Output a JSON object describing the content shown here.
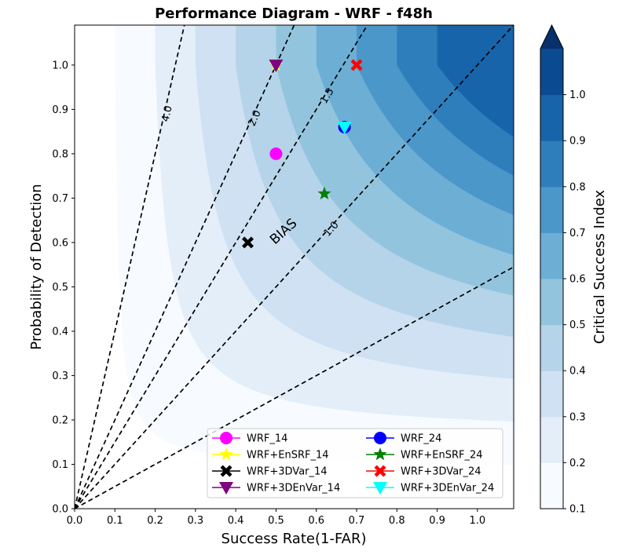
{
  "chart_data": {
    "type": "scatter",
    "title": "Performance Diagram - WRF - f48h",
    "xlabel": "Success Rate(1-FAR)",
    "ylabel": "Probability of Detection",
    "xlim": [
      0.0,
      1.09
    ],
    "ylim": [
      0.0,
      1.09
    ],
    "xticks": [
      0.0,
      0.1,
      0.2,
      0.3,
      0.4,
      0.5,
      0.6,
      0.7,
      0.8,
      0.9,
      1.0
    ],
    "yticks": [
      0.0,
      0.1,
      0.2,
      0.3,
      0.4,
      0.5,
      0.6,
      0.7,
      0.8,
      0.9,
      1.0
    ],
    "bias_label": "BIAS",
    "bias_lines": [
      {
        "slope": 4.0,
        "label": "4.0"
      },
      {
        "slope": 2.0,
        "label": "2.0"
      },
      {
        "slope": 1.5,
        "label": "1.5"
      },
      {
        "slope": 1.0,
        "label": "1.0"
      },
      {
        "slope": 0.5,
        "label": ""
      }
    ],
    "csi_colorbar": {
      "label": "Critical Success Index",
      "levels": [
        0.1,
        0.2,
        0.3,
        0.4,
        0.5,
        0.6,
        0.7,
        0.8,
        0.9,
        1.0
      ],
      "tick_labels": [
        "0.1",
        "0.2",
        "0.3",
        "0.4",
        "0.5",
        "0.6",
        "0.7",
        "0.8",
        "0.9",
        "1.0"
      ],
      "colors": [
        "#f7fbff",
        "#e3eef9",
        "#cfe1f2",
        "#b5d4e9",
        "#93c4de",
        "#6daed5",
        "#4b97c9",
        "#2f7ebc",
        "#1864aa",
        "#0a4a90"
      ],
      "extend_color": "#08306b"
    },
    "series": [
      {
        "name": "WRF_14",
        "marker": "circle",
        "color": "#ff00ff",
        "x": 0.5,
        "y": 0.8
      },
      {
        "name": "WRF+EnSRF_14",
        "marker": "star",
        "color": "#ffff00",
        "x": 0.5,
        "y": 1.0
      },
      {
        "name": "WRF+3DVar_14",
        "marker": "x",
        "color": "#000000",
        "x": 0.43,
        "y": 0.6
      },
      {
        "name": "WRF+3DEnVar_14",
        "marker": "triangle-down",
        "color": "#800080",
        "x": 0.5,
        "y": 1.0
      },
      {
        "name": "WRF_24",
        "marker": "circle",
        "color": "#0000ff",
        "x": 0.67,
        "y": 0.86
      },
      {
        "name": "WRF+EnSRF_24",
        "marker": "star",
        "color": "#008000",
        "x": 0.62,
        "y": 0.71
      },
      {
        "name": "WRF+3DVar_24",
        "marker": "x",
        "color": "#ff0000",
        "x": 0.7,
        "y": 1.0
      },
      {
        "name": "WRF+3DEnVar_24",
        "marker": "triangle-down",
        "color": "#00ffff",
        "x": 0.67,
        "y": 0.86
      }
    ],
    "legend": {
      "placement": "lower-right",
      "columns": 2
    },
    "grid": false
  }
}
